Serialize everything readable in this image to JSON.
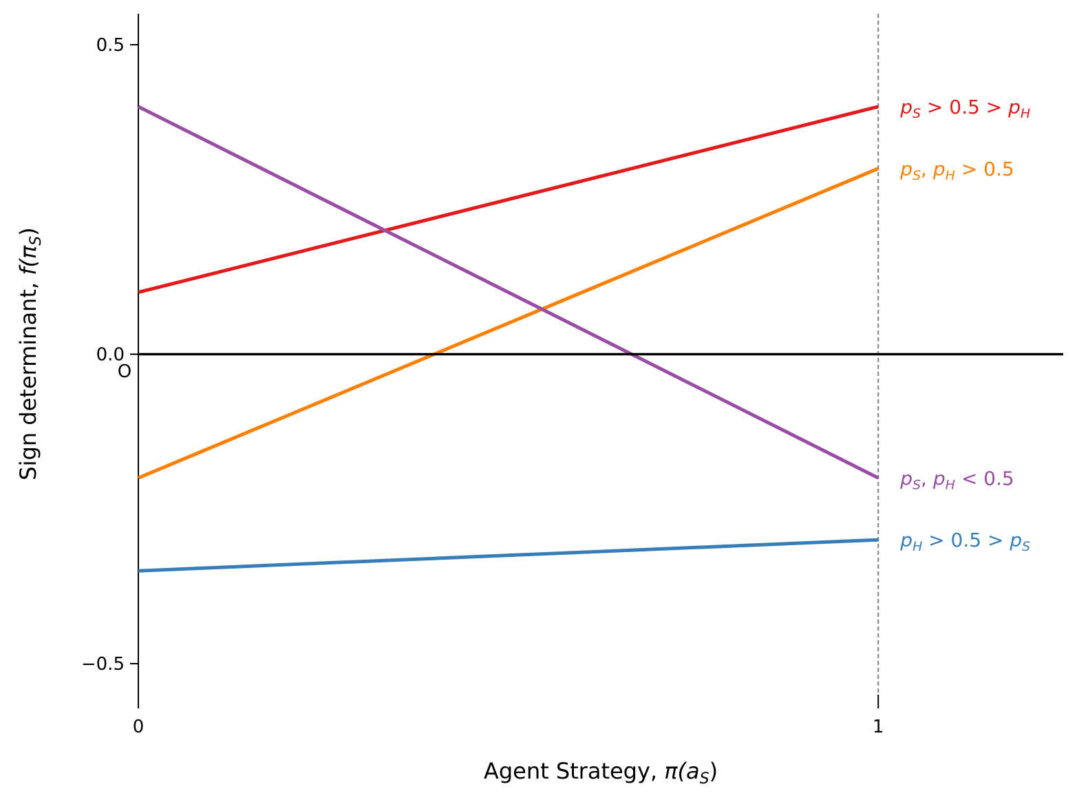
{
  "chart_data": {
    "type": "line",
    "title": "",
    "xlabel": {
      "text": "Agent Strategy, ",
      "math_main": "π(a",
      "math_sub": "S",
      "math_close": ")"
    },
    "ylabel": {
      "text": "Sign determinant, ",
      "math_main": "f(π",
      "math_sub": "S",
      "math_close": ")"
    },
    "xlim": [
      0,
      1.25
    ],
    "ylim": [
      -0.55,
      0.55
    ],
    "x_ticks": [
      {
        "value": 0,
        "label": "0"
      },
      {
        "value": 1,
        "label": "1"
      }
    ],
    "y_ticks": [
      {
        "value": 0.5,
        "label": "0.5"
      },
      {
        "value": 0.0,
        "label": "0.0"
      },
      {
        "value": -0.5,
        "label": "−0.5"
      }
    ],
    "origin_label": "O",
    "reference_lines": {
      "horizontal_y": 0,
      "vertical_x": 1,
      "vertical_style": "dashed",
      "vertical_color": "#808080",
      "horizontal_color": "#000000"
    },
    "grid": false,
    "legend": "inline labels at right end of each line",
    "series": [
      {
        "name": "p_S > 0.5 > p_H",
        "color": "#e31a1c",
        "x": [
          0,
          1
        ],
        "y": [
          0.1,
          0.4
        ],
        "label_parts": [
          {
            "t": "p",
            "m": true
          },
          {
            "t": "S",
            "sub": true
          },
          {
            "t": " > 0.5 > "
          },
          {
            "t": "p",
            "m": true
          },
          {
            "t": "H",
            "sub": true
          }
        ]
      },
      {
        "name": "p_S, p_H > 0.5",
        "color": "#ff7f00",
        "x": [
          0,
          1
        ],
        "y": [
          -0.2,
          0.3
        ],
        "label_parts": [
          {
            "t": "p",
            "m": true
          },
          {
            "t": "S",
            "sub": true
          },
          {
            "t": ", "
          },
          {
            "t": "p",
            "m": true
          },
          {
            "t": "H",
            "sub": true
          },
          {
            "t": " > 0.5"
          }
        ]
      },
      {
        "name": "p_S, p_H < 0.5",
        "color": "#984ea3",
        "x": [
          0,
          1
        ],
        "y": [
          0.4,
          -0.2
        ],
        "label_parts": [
          {
            "t": "p",
            "m": true
          },
          {
            "t": "S",
            "sub": true
          },
          {
            "t": ", "
          },
          {
            "t": "p",
            "m": true
          },
          {
            "t": "H",
            "sub": true
          },
          {
            "t": " < 0.5"
          }
        ]
      },
      {
        "name": "p_H > 0.5 > p_S",
        "color": "#377eb8",
        "x": [
          0,
          1
        ],
        "y": [
          -0.35,
          -0.3
        ],
        "label_parts": [
          {
            "t": "p",
            "m": true
          },
          {
            "t": "H",
            "sub": true
          },
          {
            "t": " > 0.5 > "
          },
          {
            "t": "p",
            "m": true
          },
          {
            "t": "S",
            "sub": true
          }
        ]
      }
    ]
  }
}
